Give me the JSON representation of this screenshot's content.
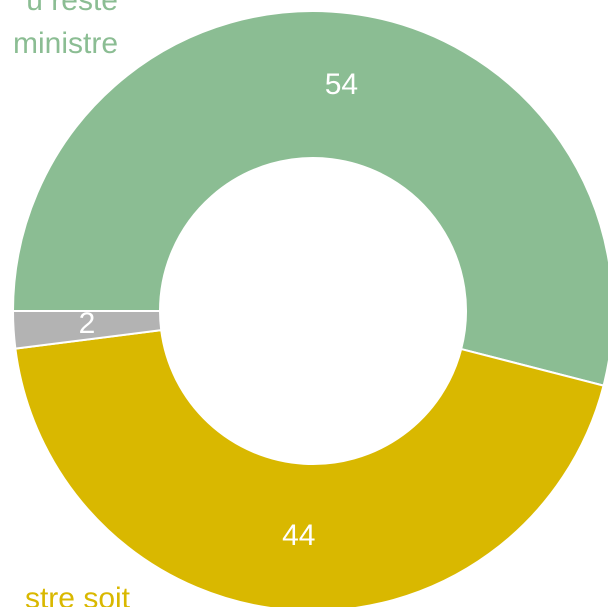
{
  "chart_data": {
    "type": "donut",
    "categories": [
      [
        "u reste",
        "ministre"
      ],
      [
        "stre soit"
      ],
      null
    ],
    "values": [
      54,
      44,
      2
    ],
    "colors": [
      "#8bbd93",
      "#d9b800",
      "#b3b3b3"
    ],
    "start_angle": 180
  }
}
